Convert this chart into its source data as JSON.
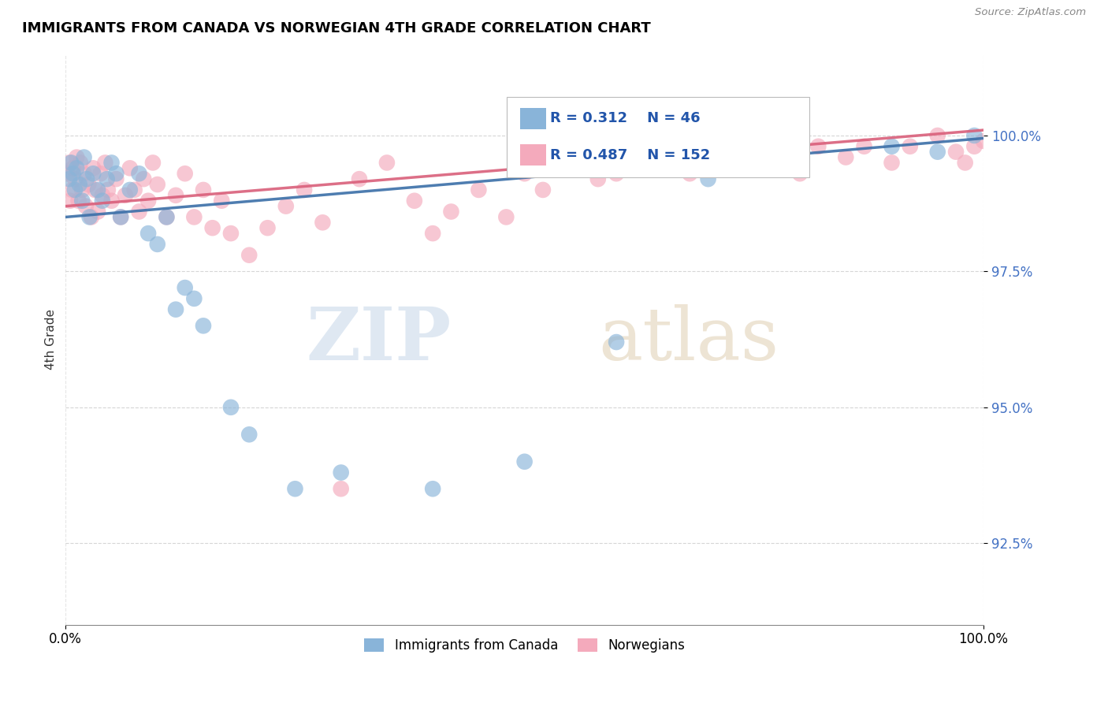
{
  "title": "IMMIGRANTS FROM CANADA VS NORWEGIAN 4TH GRADE CORRELATION CHART",
  "source_text": "Source: ZipAtlas.com",
  "ylabel": "4th Grade",
  "xlim": [
    0.0,
    100.0
  ],
  "ylim": [
    91.0,
    101.5
  ],
  "yticks": [
    92.5,
    95.0,
    97.5,
    100.0
  ],
  "blue_color": "#89B4D9",
  "pink_color": "#F4AABC",
  "blue_line_color": "#3B6FA8",
  "pink_line_color": "#D95F7A",
  "watermark_zip": "ZIP",
  "watermark_atlas": "atlas",
  "blue_scatter_x": [
    0.4,
    0.6,
    0.8,
    1.0,
    1.2,
    1.5,
    1.8,
    2.0,
    2.3,
    2.6,
    3.0,
    3.5,
    4.0,
    4.5,
    5.0,
    5.5,
    6.0,
    7.0,
    8.0,
    9.0,
    10.0,
    11.0,
    12.0,
    13.0,
    14.0,
    15.0,
    18.0,
    20.0,
    25.0,
    30.0,
    40.0,
    50.0,
    60.0,
    70.0,
    80.0,
    90.0,
    95.0,
    99.0
  ],
  "blue_scatter_y": [
    99.2,
    99.5,
    99.3,
    99.0,
    99.4,
    99.1,
    98.8,
    99.6,
    99.2,
    98.5,
    99.3,
    99.0,
    98.8,
    99.2,
    99.5,
    99.3,
    98.5,
    99.0,
    99.3,
    98.2,
    98.0,
    98.5,
    96.8,
    97.2,
    97.0,
    96.5,
    95.0,
    94.5,
    93.5,
    93.8,
    93.5,
    94.0,
    96.2,
    99.2,
    99.5,
    99.8,
    99.7,
    100.0
  ],
  "pink_scatter_x": [
    0.2,
    0.4,
    0.5,
    0.7,
    0.8,
    1.0,
    1.2,
    1.4,
    1.6,
    1.8,
    2.0,
    2.2,
    2.5,
    2.8,
    3.0,
    3.2,
    3.5,
    3.8,
    4.0,
    4.3,
    4.6,
    5.0,
    5.5,
    6.0,
    6.5,
    7.0,
    7.5,
    8.0,
    8.5,
    9.0,
    9.5,
    10.0,
    11.0,
    12.0,
    13.0,
    14.0,
    15.0,
    16.0,
    17.0,
    18.0,
    20.0,
    22.0,
    24.0,
    26.0,
    28.0,
    30.0,
    32.0,
    35.0,
    38.0,
    40.0,
    42.0,
    45.0,
    48.0,
    50.0,
    52.0,
    55.0,
    58.0,
    60.0,
    63.0,
    65.0,
    68.0,
    70.0,
    72.0,
    75.0,
    78.0,
    80.0,
    82.0,
    85.0,
    87.0,
    90.0,
    92.0,
    95.0,
    97.0,
    98.0,
    99.0,
    100.0
  ],
  "pink_scatter_y": [
    99.3,
    99.5,
    98.8,
    99.0,
    99.4,
    99.2,
    99.6,
    98.8,
    99.5,
    99.0,
    99.3,
    98.7,
    99.1,
    98.5,
    99.4,
    99.0,
    98.6,
    99.3,
    98.9,
    99.5,
    99.0,
    98.8,
    99.2,
    98.5,
    98.9,
    99.4,
    99.0,
    98.6,
    99.2,
    98.8,
    99.5,
    99.1,
    98.5,
    98.9,
    99.3,
    98.5,
    99.0,
    98.3,
    98.8,
    98.2,
    97.8,
    98.3,
    98.7,
    99.0,
    98.4,
    93.5,
    99.2,
    99.5,
    98.8,
    98.2,
    98.6,
    99.0,
    98.5,
    99.3,
    99.0,
    99.5,
    99.2,
    99.3,
    99.6,
    99.5,
    99.3,
    99.8,
    99.5,
    99.6,
    99.7,
    99.3,
    99.8,
    99.6,
    99.8,
    99.5,
    99.8,
    100.0,
    99.7,
    99.5,
    99.8,
    99.9
  ],
  "blue_trend_x0": 0.0,
  "blue_trend_y0": 98.5,
  "blue_trend_x1": 100.0,
  "blue_trend_y1": 99.95,
  "pink_trend_x0": 0.0,
  "pink_trend_y0": 98.7,
  "pink_trend_x1": 100.0,
  "pink_trend_y1": 100.1
}
